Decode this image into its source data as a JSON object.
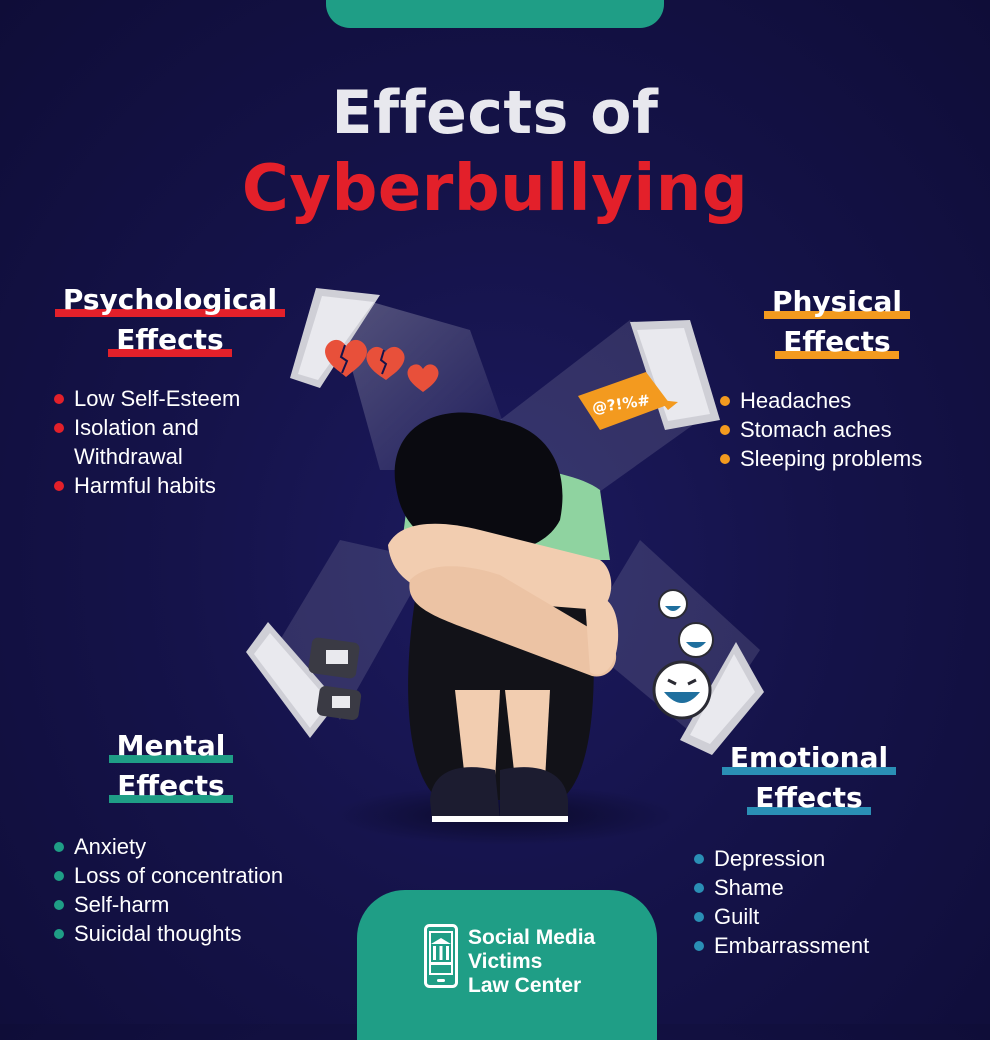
{
  "title": {
    "line1": "Effects of",
    "line2": "Cyberbullying"
  },
  "sections": {
    "psychological": {
      "heading1": "Psychological",
      "heading2": "Effects",
      "items": [
        "Low Self-Esteem",
        "Isolation and",
        "Withdrawal",
        "Harmful habits"
      ]
    },
    "physical": {
      "heading1": "Physical",
      "heading2": "Effects",
      "items": [
        "Headaches",
        "Stomach aches",
        "Sleeping problems"
      ]
    },
    "mental": {
      "heading1": "Mental",
      "heading2": "Effects",
      "items": [
        "Anxiety",
        "Loss of concentration",
        "Self-harm",
        "Suicidal thoughts"
      ]
    },
    "emotional": {
      "heading1": "Emotional",
      "heading2": "Effects",
      "items": [
        "Depression",
        "Shame",
        "Guilt",
        "Embarrassment"
      ]
    }
  },
  "illustration": {
    "chat_bubble_text": "@?!%#"
  },
  "logo": {
    "line1": "Social Media",
    "line2": "Victims",
    "line3": "Law Center"
  },
  "colors": {
    "background": "#15134a",
    "red": "#e3202a",
    "orange": "#f39a1f",
    "teal": "#1f9e86",
    "blue": "#2a8fb5"
  }
}
